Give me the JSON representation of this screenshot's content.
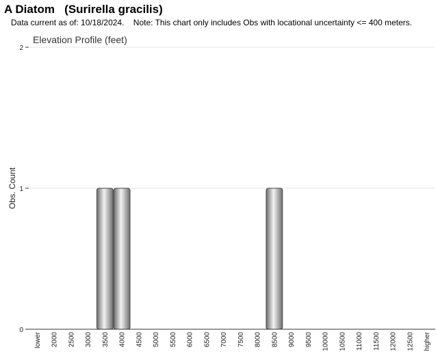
{
  "header": {
    "title": "A Diatom   (Surirella gracilis)",
    "subtitle": "Data current as of: 10/18/2024.    Note: This chart only includes Obs with locational uncertainty <= 400 meters."
  },
  "chart_data": {
    "type": "bar",
    "title": "Elevation Profile (feet)",
    "xlabel": "",
    "ylabel": "Obs. Count",
    "ylim": [
      0,
      2
    ],
    "yticks": [
      0,
      1,
      2
    ],
    "grid": true,
    "categories": [
      "lower",
      "2000",
      "2500",
      "3000",
      "3500",
      "4000",
      "4500",
      "5000",
      "5500",
      "6000",
      "6500",
      "7000",
      "7500",
      "8000",
      "8500",
      "9000",
      "9500",
      "10000",
      "10500",
      "11000",
      "11500",
      "12000",
      "12500",
      "higher"
    ],
    "values": [
      0,
      0,
      0,
      0,
      1,
      1,
      0,
      0,
      0,
      0,
      0,
      0,
      0,
      0,
      1,
      0,
      0,
      0,
      0,
      0,
      0,
      0,
      0,
      0
    ],
    "colors": {
      "bar_light": "#f2f2f2",
      "bar_dark": "#6e6e6e",
      "bar_stroke": "#444444",
      "grid": "#e6e6e6",
      "axis": "#333333"
    }
  }
}
